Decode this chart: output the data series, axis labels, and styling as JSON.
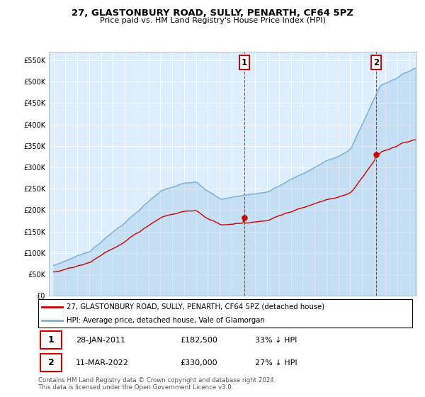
{
  "title1": "27, GLASTONBURY ROAD, SULLY, PENARTH, CF64 5PZ",
  "title2": "Price paid vs. HM Land Registry's House Price Index (HPI)",
  "sale1_date": "28-JAN-2011",
  "sale1_price": 182500,
  "sale2_date": "11-MAR-2022",
  "sale2_price": 330000,
  "sale1_pct": "33% ↓ HPI",
  "sale2_pct": "27% ↓ HPI",
  "legend_line1": "27, GLASTONBURY ROAD, SULLY, PENARTH, CF64 5PZ (detached house)",
  "legend_line2": "HPI: Average price, detached house, Vale of Glamorgan",
  "footnote": "Contains HM Land Registry data © Crown copyright and database right 2024.\nThis data is licensed under the Open Government Licence v3.0.",
  "red_color": "#cc0000",
  "blue_color": "#7ab0d4",
  "bg_color": "#ddeeff",
  "sale1_x": 2011.08,
  "sale2_x": 2022.19,
  "ylim_max": 570000,
  "ylim_min": 0,
  "yticks": [
    0,
    50000,
    100000,
    150000,
    200000,
    250000,
    300000,
    350000,
    400000,
    450000,
    500000,
    550000
  ],
  "xstart": 1995,
  "xend": 2025
}
